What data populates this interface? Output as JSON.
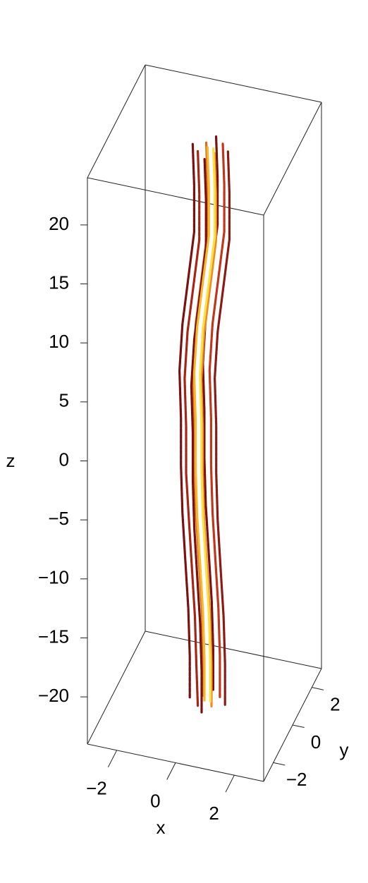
{
  "chart_data": {
    "type": "line3d",
    "x_label": "x",
    "y_label": "y",
    "z_label": "z",
    "xlim": [
      -3,
      3
    ],
    "ylim": [
      -3,
      3
    ],
    "zlim": [
      -24,
      24
    ],
    "xticks": [
      {
        "value": -2,
        "label": "−2"
      },
      0,
      2
    ],
    "yticks": [
      {
        "value": -2,
        "label": "−2"
      },
      0,
      2
    ],
    "zticks": [
      {
        "value": -20,
        "label": "−20"
      },
      {
        "value": -15,
        "label": "−15"
      },
      {
        "value": -10,
        "label": "−10"
      },
      {
        "value": -5,
        "label": "−5"
      },
      0,
      5,
      10,
      15,
      20
    ],
    "z": [
      -23.5,
      -20,
      -16,
      -12,
      -8,
      -4,
      0,
      4,
      8,
      12,
      16,
      20,
      23.5
    ],
    "series": [
      {
        "color": "#7a1010",
        "x": [
          0.1,
          0.1,
          0.05,
          -0.05,
          -0.15,
          -0.2,
          -0.2,
          -0.25,
          -0.15,
          0.05,
          0.25,
          0.25,
          0.2
        ],
        "y": [
          0.6,
          0.6,
          0.6,
          0.6,
          0.6,
          0.6,
          0.6,
          0.6,
          0.6,
          0.6,
          0.6,
          0.6,
          0.6
        ]
      },
      {
        "color": "#7a1010",
        "x": [
          -0.5,
          -0.5,
          -0.55,
          -0.65,
          -0.75,
          -0.8,
          -0.8,
          -0.85,
          -0.75,
          -0.55,
          -0.35,
          -0.35,
          -0.4
        ],
        "y": [
          0,
          0,
          0,
          0,
          0,
          0,
          0,
          0,
          0,
          0,
          0,
          0,
          0
        ]
      },
      {
        "color": "#8b1a14",
        "x": [
          0.7,
          0.7,
          0.65,
          0.55,
          0.45,
          0.4,
          0.4,
          0.35,
          0.45,
          0.65,
          0.85,
          0.85,
          0.8
        ],
        "y": [
          0,
          0,
          0,
          0,
          0,
          0,
          0,
          0,
          0,
          0,
          0,
          0,
          0
        ]
      },
      {
        "color": "#a62414",
        "x": [
          -0.12,
          -0.17,
          -0.22,
          -0.32,
          -0.42,
          -0.52,
          -0.52,
          -0.57,
          -0.47,
          -0.27,
          -0.07,
          -0.07,
          -0.12
        ],
        "y": [
          -0.32,
          -0.32,
          -0.32,
          -0.32,
          -0.32,
          -0.32,
          -0.32,
          -0.32,
          -0.32,
          -0.32,
          -0.32,
          -0.32,
          -0.32
        ]
      },
      {
        "color": "#c0361a",
        "x": [
          0.42,
          0.42,
          0.37,
          0.27,
          0.17,
          0.12,
          0.12,
          0.07,
          0.17,
          0.37,
          0.57,
          0.57,
          0.52
        ],
        "y": [
          0.32,
          0.32,
          0.32,
          0.32,
          0.32,
          0.32,
          0.32,
          0.32,
          0.32,
          0.32,
          0.32,
          0.32,
          0.32
        ]
      },
      {
        "color": "#e06a1c",
        "x": [
          -0.11,
          -0.11,
          -0.16,
          -0.26,
          -0.36,
          -0.41,
          -0.41,
          -0.46,
          -0.36,
          -0.16,
          0.04,
          0.04,
          -0.01
        ],
        "y": [
          0.21,
          0.21,
          0.21,
          0.21,
          0.21,
          0.21,
          0.21,
          0.21,
          0.21,
          0.21,
          0.21,
          0.21,
          0.21
        ]
      },
      {
        "color": "#ee8a24",
        "x": [
          0.31,
          0.31,
          0.26,
          0.16,
          0.06,
          0.01,
          0.01,
          -0.04,
          0.06,
          0.26,
          0.46,
          0.46,
          0.41
        ],
        "y": [
          -0.21,
          -0.21,
          -0.21,
          -0.21,
          -0.21,
          -0.21,
          -0.21,
          -0.21,
          -0.21,
          -0.21,
          -0.21,
          -0.21,
          -0.21
        ]
      },
      {
        "color": "#7a1010",
        "x": [
          0.1,
          0.1,
          0.05,
          -0.05,
          -0.15,
          -0.2,
          -0.2,
          -0.25,
          -0.15,
          0.05,
          0.25,
          0.25,
          0.2
        ],
        "y": [
          -0.6,
          -0.6,
          -0.6,
          -0.6,
          -0.6,
          -0.6,
          -0.6,
          -0.6,
          -0.6,
          -0.6,
          -0.6,
          -0.6,
          -0.6
        ]
      },
      {
        "color": "#f5b828",
        "x": [
          0,
          0,
          -0.05,
          -0.15,
          -0.25,
          -0.3,
          -0.3,
          -0.35,
          -0.25,
          -0.05,
          0.15,
          0.15,
          0.1
        ],
        "y": [
          0,
          0,
          0,
          0,
          0,
          0,
          0,
          0,
          0,
          0,
          0,
          0,
          0
        ]
      },
      {
        "color": "#fbe040",
        "x": [
          0.2,
          0.2,
          0.15,
          0.05,
          -0.05,
          -0.1,
          -0.1,
          -0.15,
          -0.05,
          0.15,
          0.35,
          0.35,
          0.3
        ],
        "y": [
          0,
          0,
          0,
          0,
          0,
          0,
          0,
          0,
          0,
          0,
          0,
          0,
          0
        ]
      }
    ]
  }
}
